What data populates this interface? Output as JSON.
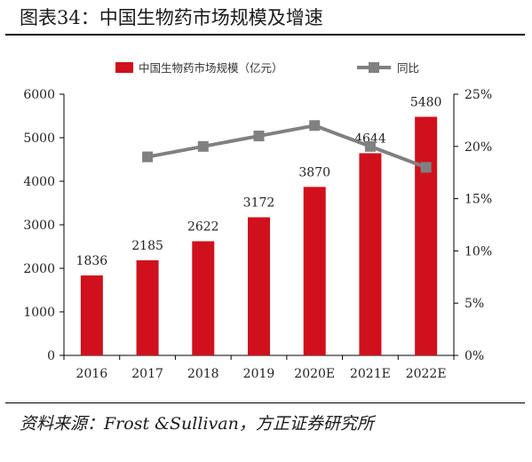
{
  "figure": {
    "title": "图表34：中国生物药市场规模及增速",
    "source": "资料来源：Frost &Sullivan，方正证券研究所"
  },
  "colors": {
    "bar": "#d0101c",
    "line": "#808080",
    "axis": "#000000"
  },
  "chart_data": {
    "type": "bar",
    "categories": [
      "2016",
      "2017",
      "2018",
      "2019",
      "2020E",
      "2021E",
      "2022E"
    ],
    "series": [
      {
        "name": "中国生物药市场规模（亿元）",
        "type": "bar",
        "axis": "left",
        "values": [
          1836,
          2185,
          2622,
          3172,
          3870,
          4644,
          5480
        ]
      },
      {
        "name": "同比",
        "type": "line",
        "axis": "right",
        "marker": "square",
        "values": [
          null,
          0.19,
          0.2,
          0.21,
          0.22,
          0.2,
          0.18
        ]
      }
    ],
    "data_labels": [
      "1836",
      "2185",
      "2622",
      "3172",
      "3870",
      "4644",
      "5480"
    ],
    "y_left": {
      "range": [
        0,
        6000
      ],
      "ticks": [
        "0",
        "1000",
        "2000",
        "3000",
        "4000",
        "5000",
        "6000"
      ]
    },
    "y_right": {
      "range": [
        0,
        0.25
      ],
      "ticks": [
        "0%",
        "5%",
        "10%",
        "15%",
        "20%",
        "25%"
      ]
    },
    "grid": false,
    "legend": "top-center"
  }
}
